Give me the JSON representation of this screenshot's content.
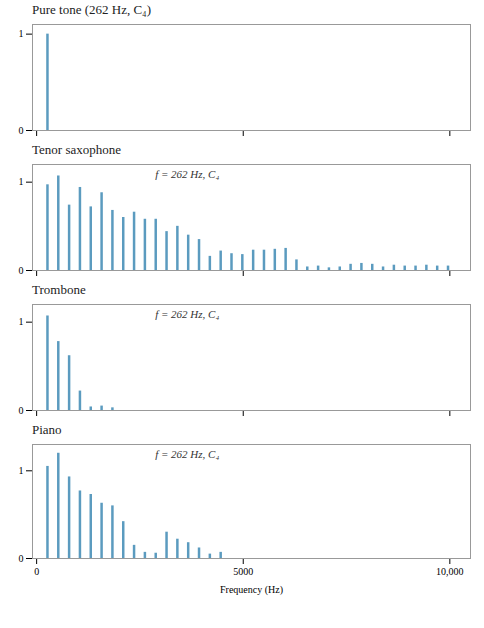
{
  "chart_data": [
    {
      "type": "bar",
      "title": "Pure tone (262 Hz, C₄)",
      "x": [
        262
      ],
      "values": [
        1.0
      ],
      "color": "#5b9bbf",
      "xlim": [
        -100,
        10500
      ],
      "xticks": [
        0,
        5000,
        {
          "value": 10000,
          "label": "10,000"
        }
      ],
      "ylim": [
        0,
        1.1
      ],
      "yticks": [
        0,
        1
      ],
      "tick_labels": "y"
    },
    {
      "type": "bar",
      "title": "Tenor saxophone",
      "annotation": "f = 262 Hz, C₄",
      "x": [
        262,
        524,
        786,
        1048,
        1310,
        1572,
        1834,
        2096,
        2358,
        2620,
        2882,
        3144,
        3406,
        3668,
        3930,
        4192,
        4454,
        4716,
        4978,
        5240,
        5502,
        5764,
        6026,
        6288,
        6550,
        6812,
        7074,
        7336,
        7598,
        7860,
        8122,
        8384,
        8646,
        8908,
        9170,
        9432,
        9694,
        9956
      ],
      "values": [
        0.97,
        1.07,
        0.74,
        0.94,
        0.72,
        0.88,
        0.68,
        0.6,
        0.66,
        0.58,
        0.58,
        0.44,
        0.5,
        0.4,
        0.35,
        0.16,
        0.22,
        0.19,
        0.18,
        0.23,
        0.23,
        0.24,
        0.25,
        0.12,
        0.04,
        0.05,
        0.03,
        0.04,
        0.07,
        0.08,
        0.07,
        0.04,
        0.06,
        0.05,
        0.05,
        0.06,
        0.05,
        0.05
      ],
      "color": "#5b9bbf",
      "xlim": [
        -100,
        10500
      ],
      "xticks": [
        0,
        5000,
        {
          "value": 10000,
          "label": "10,000"
        }
      ],
      "ylim": [
        0,
        1.2
      ],
      "yticks": [
        0,
        1
      ],
      "tick_labels": "y"
    },
    {
      "type": "bar",
      "title": "Trombone",
      "annotation": "f = 262 Hz, C₄",
      "x": [
        262,
        524,
        786,
        1048,
        1310,
        1572,
        1834
      ],
      "values": [
        1.07,
        0.78,
        0.62,
        0.22,
        0.04,
        0.05,
        0.03
      ],
      "color": "#5b9bbf",
      "xlim": [
        -100,
        10500
      ],
      "xticks": [
        0,
        5000,
        {
          "value": 10000,
          "label": "10,000"
        }
      ],
      "ylim": [
        0,
        1.2
      ],
      "yticks": [
        0,
        1
      ],
      "tick_labels": "y"
    },
    {
      "type": "bar",
      "title": "Piano",
      "annotation": "f = 262 Hz, C₄",
      "x": [
        262,
        524,
        786,
        1048,
        1310,
        1572,
        1834,
        2096,
        2358,
        2620,
        2882,
        3144,
        3406,
        3668,
        3930,
        4192,
        4454
      ],
      "values": [
        1.05,
        1.2,
        0.93,
        0.77,
        0.73,
        0.63,
        0.6,
        0.42,
        0.15,
        0.07,
        0.06,
        0.3,
        0.22,
        0.18,
        0.12,
        0.05,
        0.07
      ],
      "color": "#5b9bbf",
      "xlim": [
        -100,
        10500
      ],
      "xticks": [
        0,
        5000,
        {
          "value": 10000,
          "label": "10,000"
        }
      ],
      "ylim": [
        0,
        1.3
      ],
      "yticks": [
        0,
        1
      ],
      "xlabel": "Frequency (Hz)"
    }
  ]
}
